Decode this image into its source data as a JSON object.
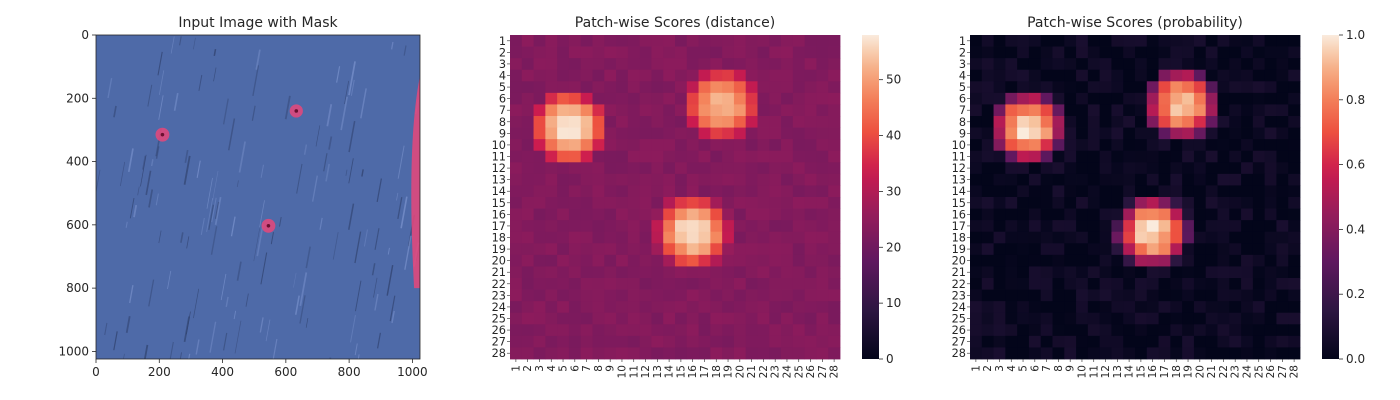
{
  "figure": {
    "background": "#ffffff"
  },
  "chart_data": [
    {
      "type": "image",
      "title": "Input Image with Mask",
      "xlabel": "",
      "ylabel": "",
      "xlim": [
        0,
        1024
      ],
      "ylim": [
        1024,
        0
      ],
      "xticks": [
        0,
        200,
        400,
        600,
        800,
        1000
      ],
      "yticks": [
        0,
        200,
        400,
        600,
        800,
        1000
      ],
      "image_colors": {
        "fabric": "#4e6aa8",
        "fabric_dark": "#2e3f6a",
        "mask": "#e8467a"
      },
      "mask_regions": [
        {
          "shape": "spot",
          "x": 210,
          "y": 315,
          "r": 14
        },
        {
          "shape": "spot",
          "x": 633,
          "y": 240,
          "r": 13
        },
        {
          "shape": "spot",
          "x": 545,
          "y": 603,
          "r": 14
        },
        {
          "shape": "edge-strip",
          "x": 1018,
          "y_start": 100,
          "y_end": 800
        }
      ]
    },
    {
      "type": "heatmap",
      "title": "Patch-wise Scores (distance)",
      "rows": 28,
      "cols": 28,
      "tick_labels": [
        "1",
        "2",
        "3",
        "4",
        "5",
        "6",
        "7",
        "8",
        "9",
        "10",
        "11",
        "12",
        "13",
        "14",
        "15",
        "16",
        "17",
        "18",
        "19",
        "20",
        "21",
        "22",
        "23",
        "24",
        "25",
        "26",
        "27",
        "28"
      ],
      "colorbar": {
        "min": 0,
        "max": 58,
        "ticks": [
          0,
          10,
          20,
          30,
          40,
          50
        ]
      },
      "colormap": "rocket",
      "value_model": {
        "base": 23,
        "border_falloff": 5,
        "hotspot_shape": "block",
        "radius": 3.5,
        "noise": 3,
        "hotspots": [
          {
            "row": 8.5,
            "col": 5.5,
            "peak": 58
          },
          {
            "row": 6.5,
            "col": 18.5,
            "peak": 53
          },
          {
            "row": 17.5,
            "col": 16,
            "peak": 57
          }
        ]
      }
    },
    {
      "type": "heatmap",
      "title": "Patch-wise Scores (probability)",
      "rows": 28,
      "cols": 28,
      "tick_labels": [
        "1",
        "2",
        "3",
        "4",
        "5",
        "6",
        "7",
        "8",
        "9",
        "10",
        "11",
        "12",
        "13",
        "14",
        "15",
        "16",
        "17",
        "18",
        "19",
        "20",
        "21",
        "22",
        "23",
        "24",
        "25",
        "26",
        "27",
        "28"
      ],
      "colorbar": {
        "min": 0.0,
        "max": 1.0,
        "ticks": [
          "0.0",
          "0.2",
          "0.4",
          "0.6",
          "0.8",
          "1.0"
        ]
      },
      "colormap": "rocket",
      "value_model": {
        "base": 0.02,
        "border_falloff": 0,
        "hotspot_shape": "block",
        "radius": 3.5,
        "noise": 0.12,
        "hotspots": [
          {
            "row": 8.5,
            "col": 5.5,
            "peak": 1.0
          },
          {
            "row": 6.5,
            "col": 18.5,
            "peak": 0.95
          },
          {
            "row": 17.5,
            "col": 16,
            "peak": 0.98
          }
        ]
      }
    }
  ]
}
